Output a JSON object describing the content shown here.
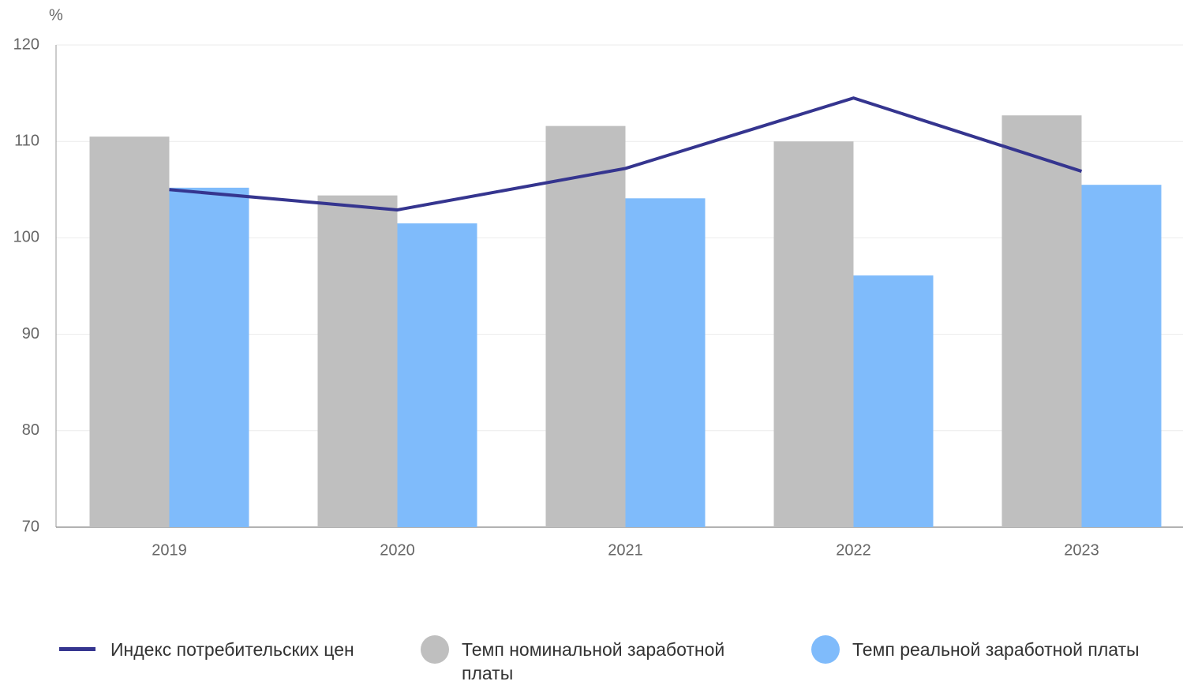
{
  "chart_data": {
    "type": "bar_line",
    "y_unit": "%",
    "categories": [
      "2019",
      "2020",
      "2021",
      "2022",
      "2023"
    ],
    "series": [
      {
        "name": "Индекс потребительских цен",
        "type": "line",
        "color": "#35358f",
        "values": [
          105.0,
          102.9,
          107.2,
          114.5,
          106.9
        ]
      },
      {
        "name": "Темп номинальной заработной платы",
        "type": "bar",
        "color": "#bfbfbf",
        "values": [
          110.5,
          104.4,
          111.6,
          110.0,
          112.7
        ]
      },
      {
        "name": "Темп реальной заработной платы",
        "type": "bar",
        "color": "#7fbbfb",
        "values": [
          105.2,
          101.5,
          104.1,
          96.1,
          105.5
        ]
      }
    ],
    "ylim": [
      70,
      120
    ],
    "yticks": [
      70,
      80,
      90,
      100,
      110,
      120
    ],
    "grid": true
  }
}
